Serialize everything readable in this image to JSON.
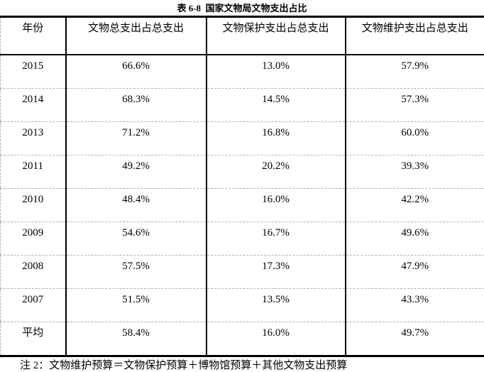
{
  "title": "表 6-8  国家文物局文物支出占比",
  "table": {
    "headers": [
      "年份",
      "文物总支出占总支出",
      "文物保护支出占总支出",
      "文物维护支出占总支出"
    ],
    "rows": [
      [
        "2015",
        "66.6%",
        "13.0%",
        "57.9%"
      ],
      [
        "2014",
        "68.3%",
        "14.5%",
        "57.3%"
      ],
      [
        "2013",
        "71.2%",
        "16.8%",
        "60.0%"
      ],
      [
        "2011",
        "49.2%",
        "20.2%",
        "39.3%"
      ],
      [
        "2010",
        "48.4%",
        "16.0%",
        "42.2%"
      ],
      [
        "2009",
        "54.6%",
        "16.7%",
        "49.6%"
      ],
      [
        "2008",
        "57.5%",
        "17.3%",
        "47.9%"
      ],
      [
        "2007",
        "51.5%",
        "13.5%",
        "43.3%"
      ]
    ],
    "summary_row": [
      "平均",
      "58.4%",
      "16.0%",
      "49.7%"
    ]
  },
  "note": "注 2：文物维护预算＝文物保护预算＋博物馆预算＋其他文物支出预算",
  "colors": {
    "border": "#000000",
    "grid_dashed": "#b0b0b0",
    "text": "#000000",
    "background": "#ffffff"
  }
}
